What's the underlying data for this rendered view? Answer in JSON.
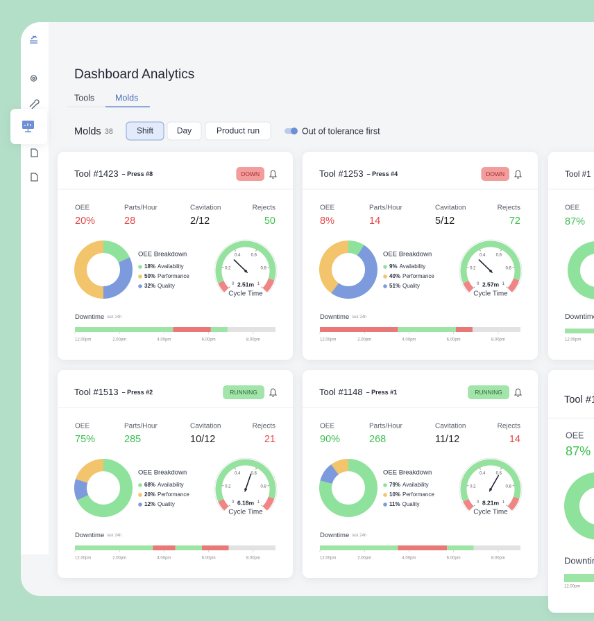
{
  "header": {
    "title": "Dashboard Analytics"
  },
  "tabs": {
    "items": [
      "Tools",
      "Molds"
    ],
    "active": 1
  },
  "toolbar": {
    "label": "Molds",
    "count": "38",
    "filters": [
      "Shift",
      "Day",
      "Product run"
    ],
    "active_filter": 0,
    "toggle_label": "Out of tolerance first"
  },
  "tones": {
    "bad": "#e54848",
    "good": "#3cbf4e",
    "neutral": "#222222"
  },
  "badges": {
    "bad": {
      "bg": "#f29c9c",
      "fg": "#a53030"
    },
    "good": {
      "bg": "#a2e4aa",
      "fg": "#2d6b36"
    }
  },
  "states": {
    "up": "#9ee4a6",
    "down": "#e97878",
    "idle": "#e2e2e2"
  },
  "timeline": {
    "xlim": [
      12,
      21
    ],
    "xticks": [
      {
        "value": 12,
        "label": "12.00pm"
      },
      {
        "value": 14,
        "label": "2.00pm"
      },
      {
        "value": 16,
        "label": "4.00pm"
      },
      {
        "value": 18,
        "label": "6.00pm"
      },
      {
        "value": 20,
        "label": "8.00pm"
      }
    ]
  },
  "gauge_scale": {
    "lim": [
      0,
      1
    ],
    "ticks": [
      0,
      0.2,
      0.4,
      0.6,
      0.8,
      1
    ],
    "label": "Cycle Time"
  },
  "cards": [
    {
      "title": "Tool #1423",
      "press": "– Press #8",
      "status": "DOWN",
      "status_tone": "bad",
      "metrics": [
        {
          "label": "OEE",
          "value": "20%",
          "tone": "bad"
        },
        {
          "label": "Parts/Hour",
          "value": "28",
          "tone": "bad"
        },
        {
          "label": "Cavitation",
          "value": "2/12",
          "tone": "neutral"
        },
        {
          "label": "Rejects",
          "value": "50",
          "tone": "good"
        }
      ],
      "breakdown": {
        "title": "OEE Breakdown",
        "items": [
          {
            "label": "Availability",
            "value": 18,
            "value_label": "18%",
            "color": "#8fe29b"
          },
          {
            "label": "Performance",
            "value": 50,
            "value_label": "50%",
            "color": "#f2c46b"
          },
          {
            "label": "Quality",
            "value": 32,
            "value_label": "32%",
            "color": "#7d9bdc"
          }
        ]
      },
      "gauge": {
        "value_label": "2.51m",
        "needle": 0.33
      },
      "downtime": {
        "label": "Downtime",
        "note": "last 24h",
        "segments": [
          {
            "state": "up",
            "hours": 4.4
          },
          {
            "state": "down",
            "hours": 1.7
          },
          {
            "state": "up",
            "hours": 0.75
          },
          {
            "state": "idle",
            "hours": 2.15
          }
        ]
      }
    },
    {
      "title": "Tool #1253",
      "press": "– Press #4",
      "status": "DOWN",
      "status_tone": "bad",
      "metrics": [
        {
          "label": "OEE",
          "value": "8%",
          "tone": "bad"
        },
        {
          "label": "Parts/Hour",
          "value": "14",
          "tone": "bad"
        },
        {
          "label": "Cavitation",
          "value": "5/12",
          "tone": "neutral"
        },
        {
          "label": "Rejects",
          "value": "72",
          "tone": "good"
        }
      ],
      "breakdown": {
        "title": "OEE Breakdown",
        "items": [
          {
            "label": "Availability",
            "value": 9,
            "value_label": "9%",
            "color": "#8fe29b"
          },
          {
            "label": "Performance",
            "value": 40,
            "value_label": "40%",
            "color": "#f2c46b"
          },
          {
            "label": "Quality",
            "value": 51,
            "value_label": "51%",
            "color": "#7d9bdc"
          }
        ]
      },
      "gauge": {
        "value_label": "2.57m",
        "needle": 0.33
      },
      "downtime": {
        "label": "Downtime",
        "note": "last 24h",
        "segments": [
          {
            "state": "down",
            "hours": 3.5
          },
          {
            "state": "up",
            "hours": 2.6
          },
          {
            "state": "down",
            "hours": 0.75
          },
          {
            "state": "idle",
            "hours": 2.15
          }
        ]
      }
    },
    {
      "title": "Tool #1513",
      "press": "– Press #2",
      "status": "RUNNING",
      "status_tone": "good",
      "metrics": [
        {
          "label": "OEE",
          "value": "75%",
          "tone": "good"
        },
        {
          "label": "Parts/Hour",
          "value": "285",
          "tone": "good"
        },
        {
          "label": "Cavitation",
          "value": "10/12",
          "tone": "neutral"
        },
        {
          "label": "Rejects",
          "value": "21",
          "tone": "bad"
        }
      ],
      "breakdown": {
        "title": "OEE Breakdown",
        "items": [
          {
            "label": "Availability",
            "value": 68,
            "value_label": "68%",
            "color": "#8fe29b"
          },
          {
            "label": "Performance",
            "value": 20,
            "value_label": "20%",
            "color": "#f2c46b"
          },
          {
            "label": "Quality",
            "value": 12,
            "value_label": "12%",
            "color": "#7d9bdc"
          }
        ]
      },
      "gauge": {
        "value_label": "6.18m",
        "needle": 0.57
      },
      "downtime": {
        "label": "Downtime",
        "note": "last 24h",
        "segments": [
          {
            "state": "up",
            "hours": 3.5
          },
          {
            "state": "down",
            "hours": 1.0
          },
          {
            "state": "up",
            "hours": 1.2
          },
          {
            "state": "down",
            "hours": 1.2
          },
          {
            "state": "idle",
            "hours": 2.1
          }
        ]
      }
    },
    {
      "title": "Tool #1148",
      "press": "– Press #1",
      "status": "RUNNING",
      "status_tone": "good",
      "metrics": [
        {
          "label": "OEE",
          "value": "90%",
          "tone": "good"
        },
        {
          "label": "Parts/Hour",
          "value": "268",
          "tone": "good"
        },
        {
          "label": "Cavitation",
          "value": "11/12",
          "tone": "neutral"
        },
        {
          "label": "Rejects",
          "value": "14",
          "tone": "bad"
        }
      ],
      "breakdown": {
        "title": "OEE Breakdown",
        "items": [
          {
            "label": "Availability",
            "value": 79,
            "value_label": "79%",
            "color": "#8fe29b"
          },
          {
            "label": "Performance",
            "value": 10,
            "value_label": "10%",
            "color": "#f2c46b"
          },
          {
            "label": "Quality",
            "value": 11,
            "value_label": "11%",
            "color": "#7d9bdc"
          }
        ]
      },
      "gauge": {
        "value_label": "8.21m",
        "needle": 0.61
      },
      "downtime": {
        "label": "Downtime",
        "note": "last 24h",
        "segments": [
          {
            "state": "up",
            "hours": 3.5
          },
          {
            "state": "down",
            "hours": 2.2
          },
          {
            "state": "up",
            "hours": 1.2
          },
          {
            "state": "idle",
            "hours": 2.1
          }
        ]
      }
    }
  ],
  "peek_cards": [
    {
      "title": "Tool #1",
      "metric_label": "OEE",
      "metric_value": "87%",
      "downtime_label": "Downtime",
      "time_label": "12.00pm"
    },
    {
      "title": "Tool #1",
      "metric_label": "OEE",
      "metric_value": "87%",
      "downtime_label": "Downtime",
      "time_label": "12.00pm"
    }
  ]
}
